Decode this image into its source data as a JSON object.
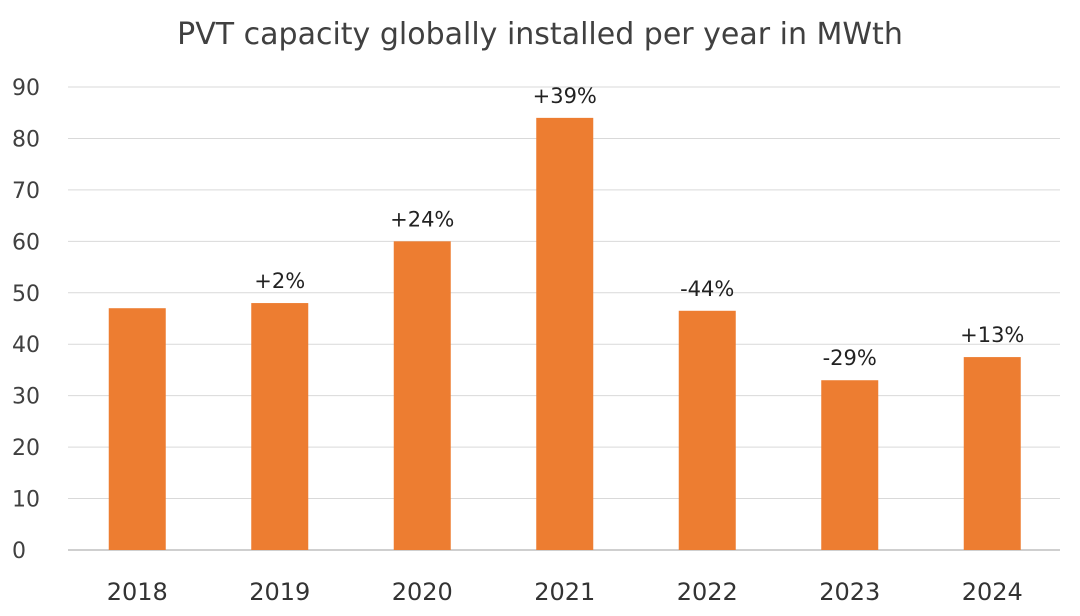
{
  "chart_data": {
    "type": "bar",
    "title": "PVT capacity globally installed per year in MWth",
    "xlabel": "",
    "ylabel": "",
    "categories": [
      "2018",
      "2019",
      "2020",
      "2021",
      "2022",
      "2023",
      "2024"
    ],
    "values": [
      47,
      48,
      60,
      84,
      46.5,
      33,
      37.5
    ],
    "data_labels": [
      "",
      "+2%",
      "+24%",
      "+39%",
      "-44%",
      "-29%",
      "+13%"
    ],
    "ylim": [
      0,
      90
    ],
    "yticks": [
      0,
      10,
      20,
      30,
      40,
      50,
      60,
      70,
      80,
      90
    ],
    "grid": true,
    "legend": "none",
    "bar_color": "#ED7D31",
    "grid_color": "#D9D9D9",
    "text_color": "#404040"
  }
}
